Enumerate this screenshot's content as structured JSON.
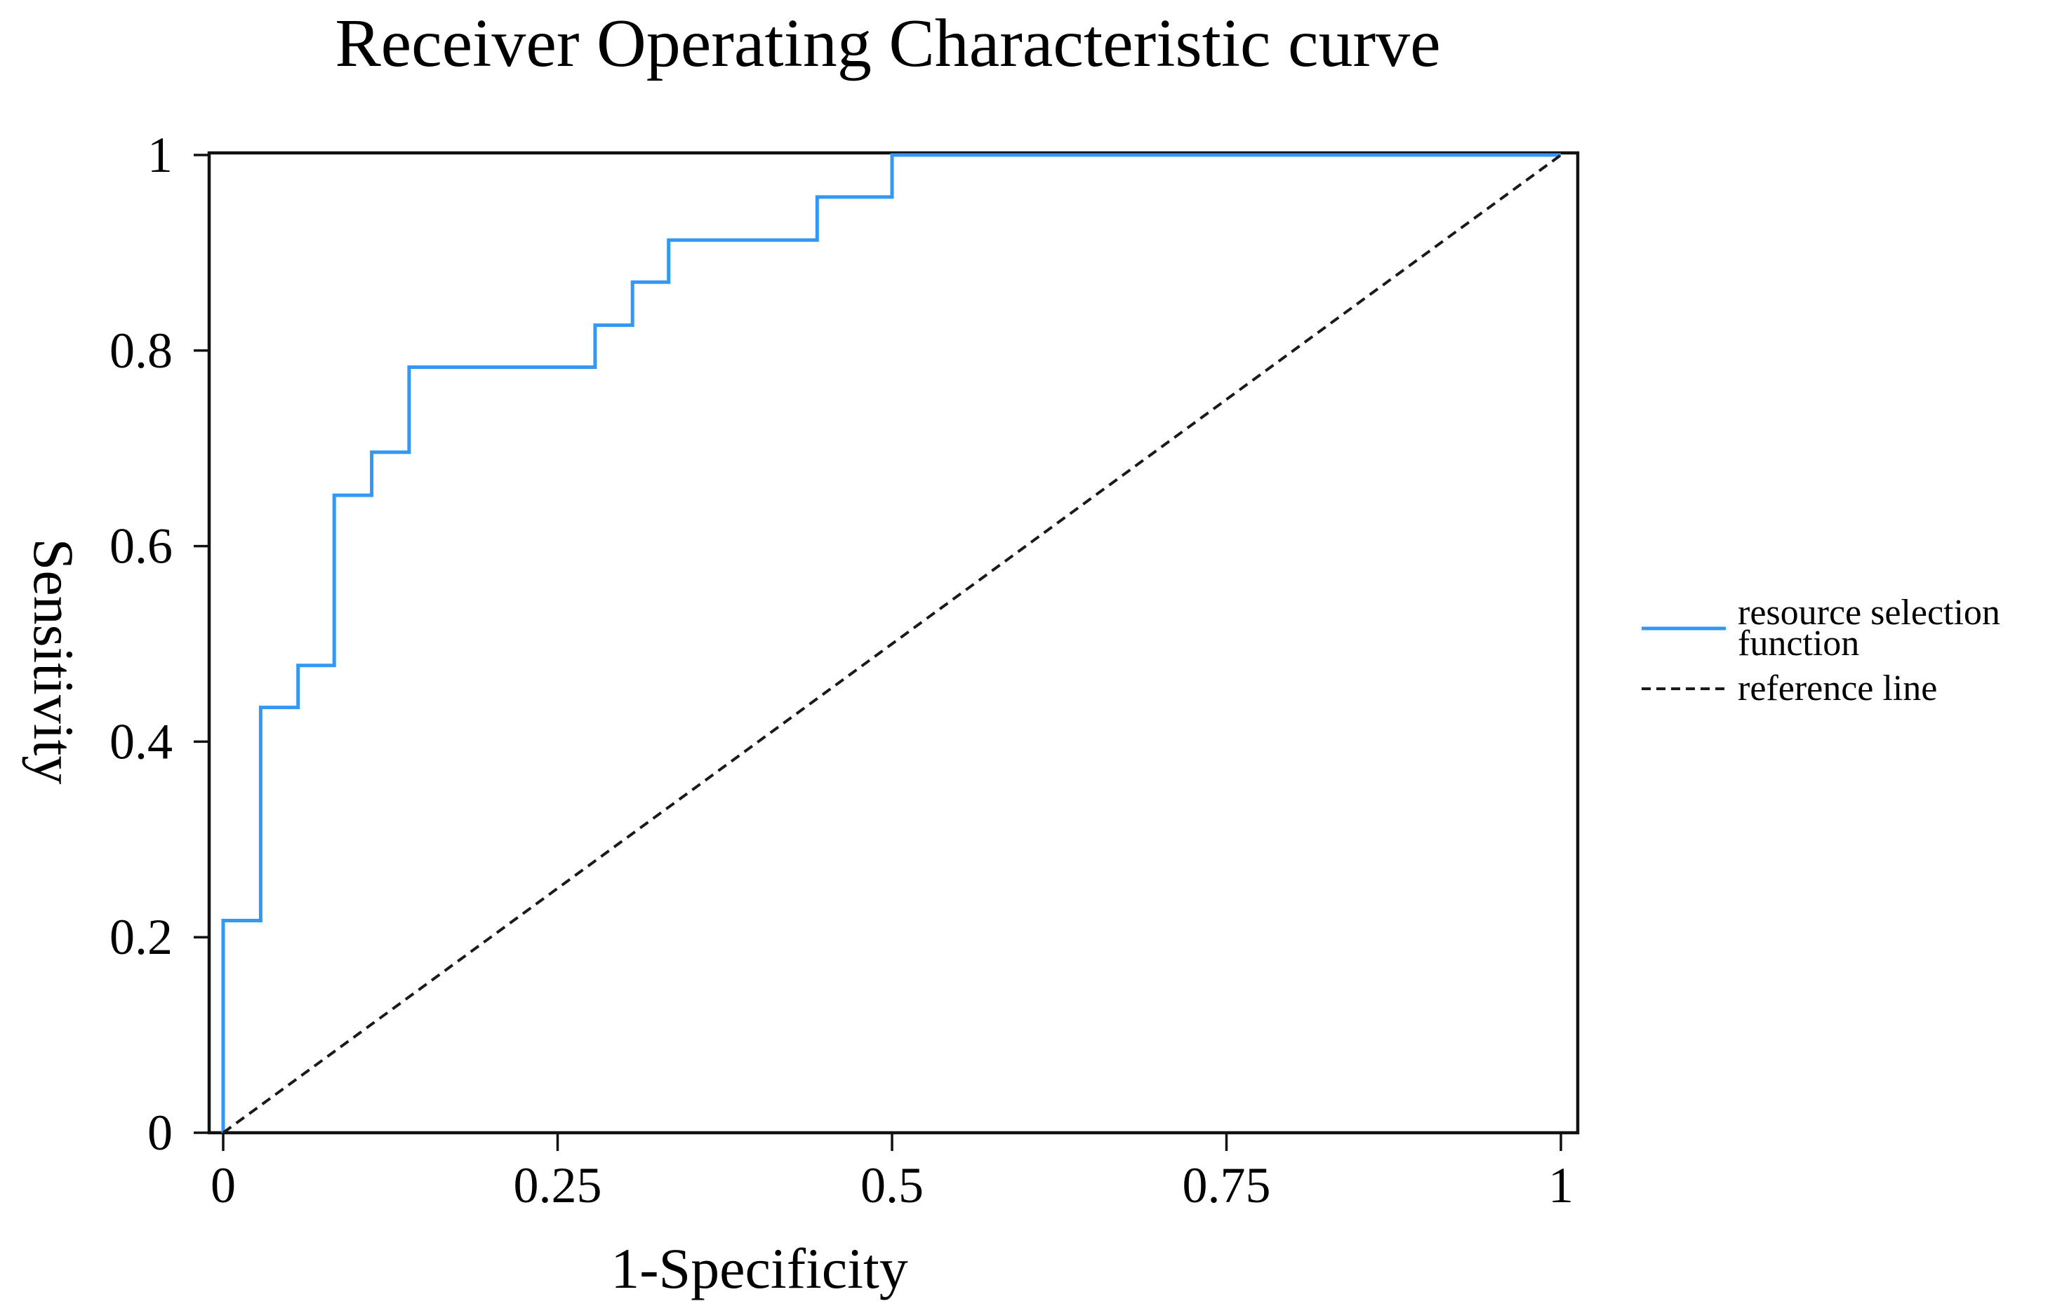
{
  "title": "Receiver Operating Characteristic curve",
  "axes": {
    "x": {
      "label": "1-Specificity",
      "tick_labels": [
        "0",
        "0.25",
        "0.5",
        "0.75",
        "1"
      ]
    },
    "y": {
      "label": "Sensitivity",
      "tick_labels": [
        "0",
        "0.2",
        "0.4",
        "0.6",
        "0.8",
        "1"
      ]
    }
  },
  "legend": {
    "items": [
      {
        "label": "resource selection\nfunction",
        "line_style": "solid",
        "color": "#3398F3"
      },
      {
        "label": "reference line",
        "line_style": "dashed",
        "color": "#1a1a1a"
      }
    ]
  },
  "colors": {
    "curve": "#3398F3",
    "reference_line": "#1a1a1a",
    "axis": "#111111",
    "background": "#ffffff",
    "text": "#000000"
  },
  "chart_data": {
    "type": "line",
    "title": "Receiver Operating Characteristic curve",
    "xlabel": "1-Specificity",
    "ylabel": "Sensitivity",
    "xlim": [
      0,
      1
    ],
    "ylim": [
      0,
      1
    ],
    "x_ticks": [
      0,
      0.25,
      0.5,
      0.75,
      1
    ],
    "y_ticks": [
      0,
      0.2,
      0.4,
      0.6,
      0.8,
      1
    ],
    "grid": false,
    "frame": "full-box",
    "legend_position": "right-outside",
    "series": [
      {
        "name": "resource selection function",
        "style": "solid",
        "color": "#3398F3",
        "step": true,
        "points": [
          [
            0,
            0
          ],
          [
            0,
            0.217
          ],
          [
            0.028,
            0.217
          ],
          [
            0.028,
            0.435
          ],
          [
            0.056,
            0.435
          ],
          [
            0.056,
            0.478
          ],
          [
            0.083,
            0.478
          ],
          [
            0.083,
            0.652
          ],
          [
            0.111,
            0.652
          ],
          [
            0.111,
            0.696
          ],
          [
            0.139,
            0.696
          ],
          [
            0.139,
            0.783
          ],
          [
            0.278,
            0.783
          ],
          [
            0.278,
            0.826
          ],
          [
            0.306,
            0.826
          ],
          [
            0.306,
            0.87
          ],
          [
            0.333,
            0.87
          ],
          [
            0.333,
            0.913
          ],
          [
            0.444,
            0.913
          ],
          [
            0.444,
            0.957
          ],
          [
            0.5,
            0.957
          ],
          [
            0.5,
            1
          ],
          [
            1,
            1
          ]
        ]
      },
      {
        "name": "reference line",
        "style": "dashed",
        "color": "#1a1a1a",
        "points": [
          [
            0,
            0
          ],
          [
            1,
            1
          ]
        ]
      }
    ]
  }
}
